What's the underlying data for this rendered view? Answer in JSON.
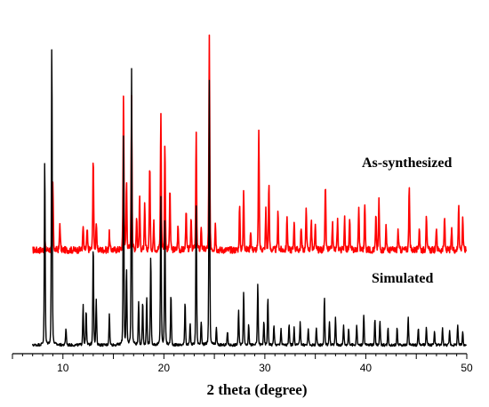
{
  "chart_data": {
    "type": "line",
    "title": "",
    "xlabel": "2 theta (degree)",
    "ylabel": "",
    "xlim": [
      5,
      50
    ],
    "ylim": [
      0,
      1
    ],
    "x_ticks": [
      10,
      20,
      30,
      40,
      50
    ],
    "x_tick_labels": [
      "10",
      "20",
      "30",
      "40",
      "50"
    ],
    "grid": false,
    "series": [
      {
        "name": "As-synthesized",
        "color": "#ff0000",
        "baseline": 0.3,
        "noise": 0.01,
        "peaks": [
          [
            8.2,
            0.04
          ],
          [
            9.0,
            0.2
          ],
          [
            9.7,
            0.08
          ],
          [
            12.0,
            0.07
          ],
          [
            12.4,
            0.06
          ],
          [
            13.0,
            0.28
          ],
          [
            13.3,
            0.08
          ],
          [
            14.6,
            0.05
          ],
          [
            16.0,
            0.46
          ],
          [
            16.3,
            0.2
          ],
          [
            16.8,
            0.46
          ],
          [
            17.3,
            0.1
          ],
          [
            17.6,
            0.16
          ],
          [
            18.1,
            0.13
          ],
          [
            18.6,
            0.26
          ],
          [
            19.0,
            0.08
          ],
          [
            19.7,
            0.41
          ],
          [
            20.1,
            0.31
          ],
          [
            20.6,
            0.18
          ],
          [
            21.4,
            0.07
          ],
          [
            22.2,
            0.12
          ],
          [
            22.7,
            0.1
          ],
          [
            23.2,
            0.34
          ],
          [
            23.7,
            0.07
          ],
          [
            24.5,
            0.63
          ],
          [
            25.1,
            0.08
          ],
          [
            27.5,
            0.13
          ],
          [
            27.9,
            0.18
          ],
          [
            28.6,
            0.06
          ],
          [
            29.4,
            0.36
          ],
          [
            30.1,
            0.12
          ],
          [
            30.4,
            0.2
          ],
          [
            31.3,
            0.11
          ],
          [
            32.2,
            0.1
          ],
          [
            32.9,
            0.09
          ],
          [
            33.6,
            0.07
          ],
          [
            34.1,
            0.13
          ],
          [
            34.6,
            0.09
          ],
          [
            35.0,
            0.07
          ],
          [
            36.0,
            0.2
          ],
          [
            36.7,
            0.08
          ],
          [
            37.2,
            0.09
          ],
          [
            37.9,
            0.1
          ],
          [
            38.4,
            0.09
          ],
          [
            39.3,
            0.13
          ],
          [
            39.9,
            0.14
          ],
          [
            41.0,
            0.1
          ],
          [
            41.3,
            0.15
          ],
          [
            42.0,
            0.07
          ],
          [
            43.2,
            0.06
          ],
          [
            44.3,
            0.2
          ],
          [
            45.3,
            0.07
          ],
          [
            46.0,
            0.11
          ],
          [
            47.0,
            0.07
          ],
          [
            47.8,
            0.1
          ],
          [
            48.5,
            0.06
          ],
          [
            49.2,
            0.14
          ],
          [
            49.6,
            0.1
          ]
        ]
      },
      {
        "name": "Simulated",
        "color": "#000000",
        "baseline": 0.02,
        "noise": 0.004,
        "peaks": [
          [
            8.2,
            0.55
          ],
          [
            8.9,
            0.9
          ],
          [
            10.3,
            0.05
          ],
          [
            12.0,
            0.12
          ],
          [
            12.3,
            0.1
          ],
          [
            13.0,
            0.3
          ],
          [
            13.3,
            0.13
          ],
          [
            14.6,
            0.09
          ],
          [
            16.0,
            0.62
          ],
          [
            16.3,
            0.22
          ],
          [
            16.8,
            0.81
          ],
          [
            17.5,
            0.13
          ],
          [
            17.9,
            0.13
          ],
          [
            18.3,
            0.14
          ],
          [
            18.7,
            0.26
          ],
          [
            19.7,
            0.44
          ],
          [
            20.1,
            0.38
          ],
          [
            20.7,
            0.15
          ],
          [
            22.1,
            0.13
          ],
          [
            22.6,
            0.06
          ],
          [
            23.2,
            0.41
          ],
          [
            23.7,
            0.07
          ],
          [
            24.5,
            0.78
          ],
          [
            25.2,
            0.05
          ],
          [
            26.3,
            0.04
          ],
          [
            27.4,
            0.1
          ],
          [
            27.9,
            0.16
          ],
          [
            28.4,
            0.06
          ],
          [
            29.3,
            0.18
          ],
          [
            29.9,
            0.07
          ],
          [
            30.3,
            0.14
          ],
          [
            30.9,
            0.06
          ],
          [
            31.6,
            0.05
          ],
          [
            32.4,
            0.06
          ],
          [
            32.9,
            0.05
          ],
          [
            33.5,
            0.07
          ],
          [
            34.3,
            0.05
          ],
          [
            35.1,
            0.05
          ],
          [
            35.9,
            0.14
          ],
          [
            36.4,
            0.07
          ],
          [
            37.0,
            0.08
          ],
          [
            37.8,
            0.06
          ],
          [
            38.3,
            0.05
          ],
          [
            39.1,
            0.06
          ],
          [
            39.8,
            0.09
          ],
          [
            40.9,
            0.08
          ],
          [
            41.4,
            0.07
          ],
          [
            42.2,
            0.05
          ],
          [
            43.1,
            0.05
          ],
          [
            44.2,
            0.08
          ],
          [
            45.2,
            0.05
          ],
          [
            46.0,
            0.05
          ],
          [
            46.8,
            0.04
          ],
          [
            47.6,
            0.05
          ],
          [
            48.3,
            0.04
          ],
          [
            49.1,
            0.06
          ],
          [
            49.6,
            0.04
          ]
        ]
      }
    ]
  }
}
